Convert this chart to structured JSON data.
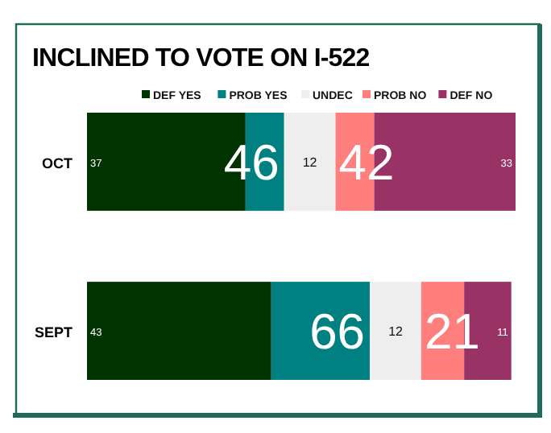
{
  "chart_data": {
    "type": "bar",
    "orientation": "horizontal",
    "stacked": true,
    "title": "INCLINED TO VOTE ON I-522",
    "categories": [
      "OCT",
      "SEPT"
    ],
    "xlim": [
      0,
      100
    ],
    "tick_labels": "y",
    "legend": "top",
    "series": [
      {
        "name": "DEF YES",
        "color": "#003300",
        "values": [
          37,
          43
        ],
        "value_labels": [
          "37",
          "43"
        ]
      },
      {
        "name": "PROB YES",
        "color": "#008080",
        "values": [
          9,
          23
        ],
        "value_labels": [
          null,
          null
        ]
      },
      {
        "name": "UNDEC",
        "color": "#eeeeee",
        "values": [
          12,
          12
        ],
        "value_labels": [
          "12",
          "12"
        ]
      },
      {
        "name": "PROB NO",
        "color": "#ff7f7f",
        "values": [
          9,
          10
        ],
        "value_labels": [
          null,
          null
        ]
      },
      {
        "name": "DEF NO",
        "color": "#993366",
        "values": [
          33,
          11
        ],
        "value_labels": [
          "33",
          "11"
        ]
      }
    ],
    "annotations": [
      "46",
      "42",
      "66",
      "21"
    ]
  }
}
